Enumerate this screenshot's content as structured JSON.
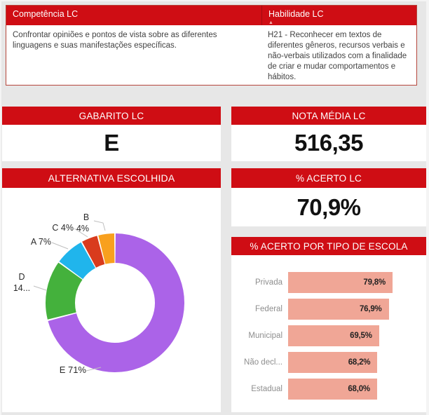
{
  "table": {
    "columns": [
      {
        "header": "Competência LC",
        "body": "Confrontar opiniões e pontos de vista sobre as diferentes linguagens e suas manifestações específicas."
      },
      {
        "header": "Habilidade LC",
        "body": "H21 - Reconhecer em textos de diferentes gêneros, recursos verbais e não-verbais utilizados com a finalidade de criar e mudar comportamentos e hábitos.",
        "sorted": "ascending"
      }
    ]
  },
  "icons": {
    "sort_ascending": "▲"
  },
  "cards": {
    "gabarito": {
      "title": "GABARITO LC",
      "value": "E"
    },
    "nota_media": {
      "title": "NOTA MÉDIA LC",
      "value": "516,35"
    },
    "acerto": {
      "title": "% ACERTO LC",
      "value": "70,9%"
    }
  },
  "colors": {
    "header_red": "#CF0D14",
    "table_border": "#B5463C",
    "canvas_gray": "#E7E7E7",
    "leader_line": "#BFBFBF"
  },
  "chart_data": [
    {
      "type": "pie",
      "subtype": "donut",
      "title": "ALTERNATIVA ESCOLHIDA",
      "labels": [
        "E",
        "D",
        "A",
        "C",
        "B"
      ],
      "values": [
        71,
        14,
        7,
        4,
        4
      ],
      "unit": "%",
      "colors": [
        "#AB63E8",
        "#44B13C",
        "#20B5EC",
        "#D93B1D",
        "#F8A01E"
      ],
      "legend_position": "none",
      "display_labels": {
        "e": "E 71%",
        "d1": "D",
        "d2": "14...",
        "a": "A 7%",
        "c": "C 4%",
        "b1": "B",
        "b2": "4%"
      }
    },
    {
      "type": "bar",
      "orientation": "horizontal",
      "title": "% ACERTO POR TIPO DE ESCOLA",
      "categories": [
        "Privada",
        "Federal",
        "Municipal",
        "Não decl...",
        "Estadual"
      ],
      "values": [
        79.8,
        76.9,
        69.5,
        68.2,
        68.0
      ],
      "value_labels": [
        "79,8%",
        "76,9%",
        "69,5%",
        "68,2%",
        "68,0%"
      ],
      "xlim": [
        0,
        85
      ],
      "grid": false,
      "bar_color": "#F0A696"
    }
  ]
}
